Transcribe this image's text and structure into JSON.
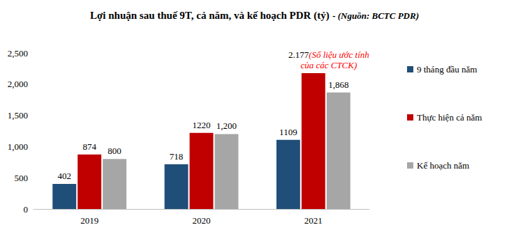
{
  "chart_data": {
    "type": "bar",
    "title": "Lợi nhuận sau thuế 9T, cả năm, và kế hoạch PDR (tỷ)",
    "subtitle": "- (Nguồn: BCTC PDR)",
    "categories": [
      "2019",
      "2020",
      "2021"
    ],
    "series": [
      {
        "name": "9 tháng đầu năm",
        "color": "#1f4e79",
        "values": [
          402,
          718,
          1109
        ],
        "value_labels": [
          "402",
          "718",
          "1109"
        ]
      },
      {
        "name": "Thực hiện cả năm",
        "color": "#c00000",
        "values": [
          874,
          1220,
          2177
        ],
        "value_labels": [
          "874",
          "1220",
          "2.177"
        ]
      },
      {
        "name": "Kế hoạch năm",
        "color": "#a6a6a6",
        "values": [
          800,
          1200,
          1868
        ],
        "value_labels": [
          "800",
          "1,200",
          "1,868"
        ]
      }
    ],
    "annotations": [
      {
        "text": "(Số liệu ước tính\ncủa các CTCK)",
        "category": "2021",
        "series": "Thực hiện cả năm",
        "color": "#ff0000"
      }
    ],
    "ylim": [
      0,
      2500
    ],
    "yticks": [
      0,
      500,
      {
        "value": 1000,
        "label": "1,000"
      },
      {
        "value": 1500,
        "label": "1,500"
      },
      {
        "value": 2000,
        "label": "2,000"
      },
      {
        "value": 2500,
        "label": "2,500"
      }
    ],
    "grid": false,
    "legend": "right",
    "data_labels": true
  }
}
